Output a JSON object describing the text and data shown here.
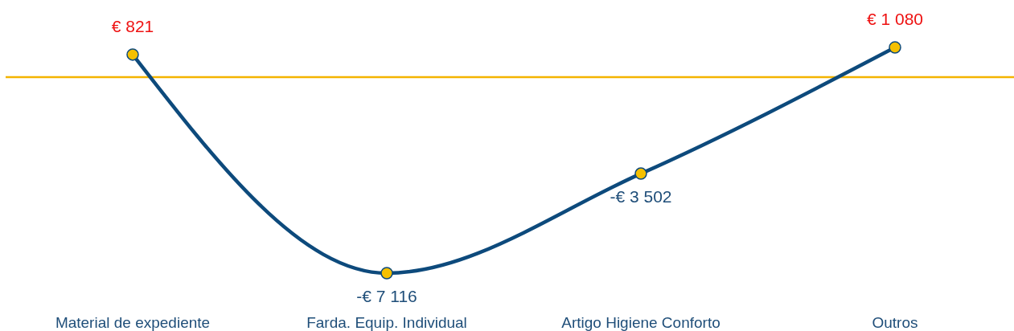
{
  "chart_data": {
    "type": "line",
    "categories": [
      "Material de expediente",
      "Farda. Equip. Individual",
      "Artigo Higiene Conforto",
      "Outros"
    ],
    "series": [
      {
        "color": "#0d4a7c",
        "values": [
          821,
          -7116,
          -3502,
          1080
        ],
        "value_labels": [
          "€ 821",
          "-€ 7 116",
          "-€ 3 502",
          "€ 1 080"
        ]
      }
    ],
    "ref_lines": [
      {
        "axis": "y",
        "value": 0,
        "color": "#f4b400"
      }
    ],
    "marker": "circle",
    "line_style": "solid",
    "tick_labels": "x"
  }
}
